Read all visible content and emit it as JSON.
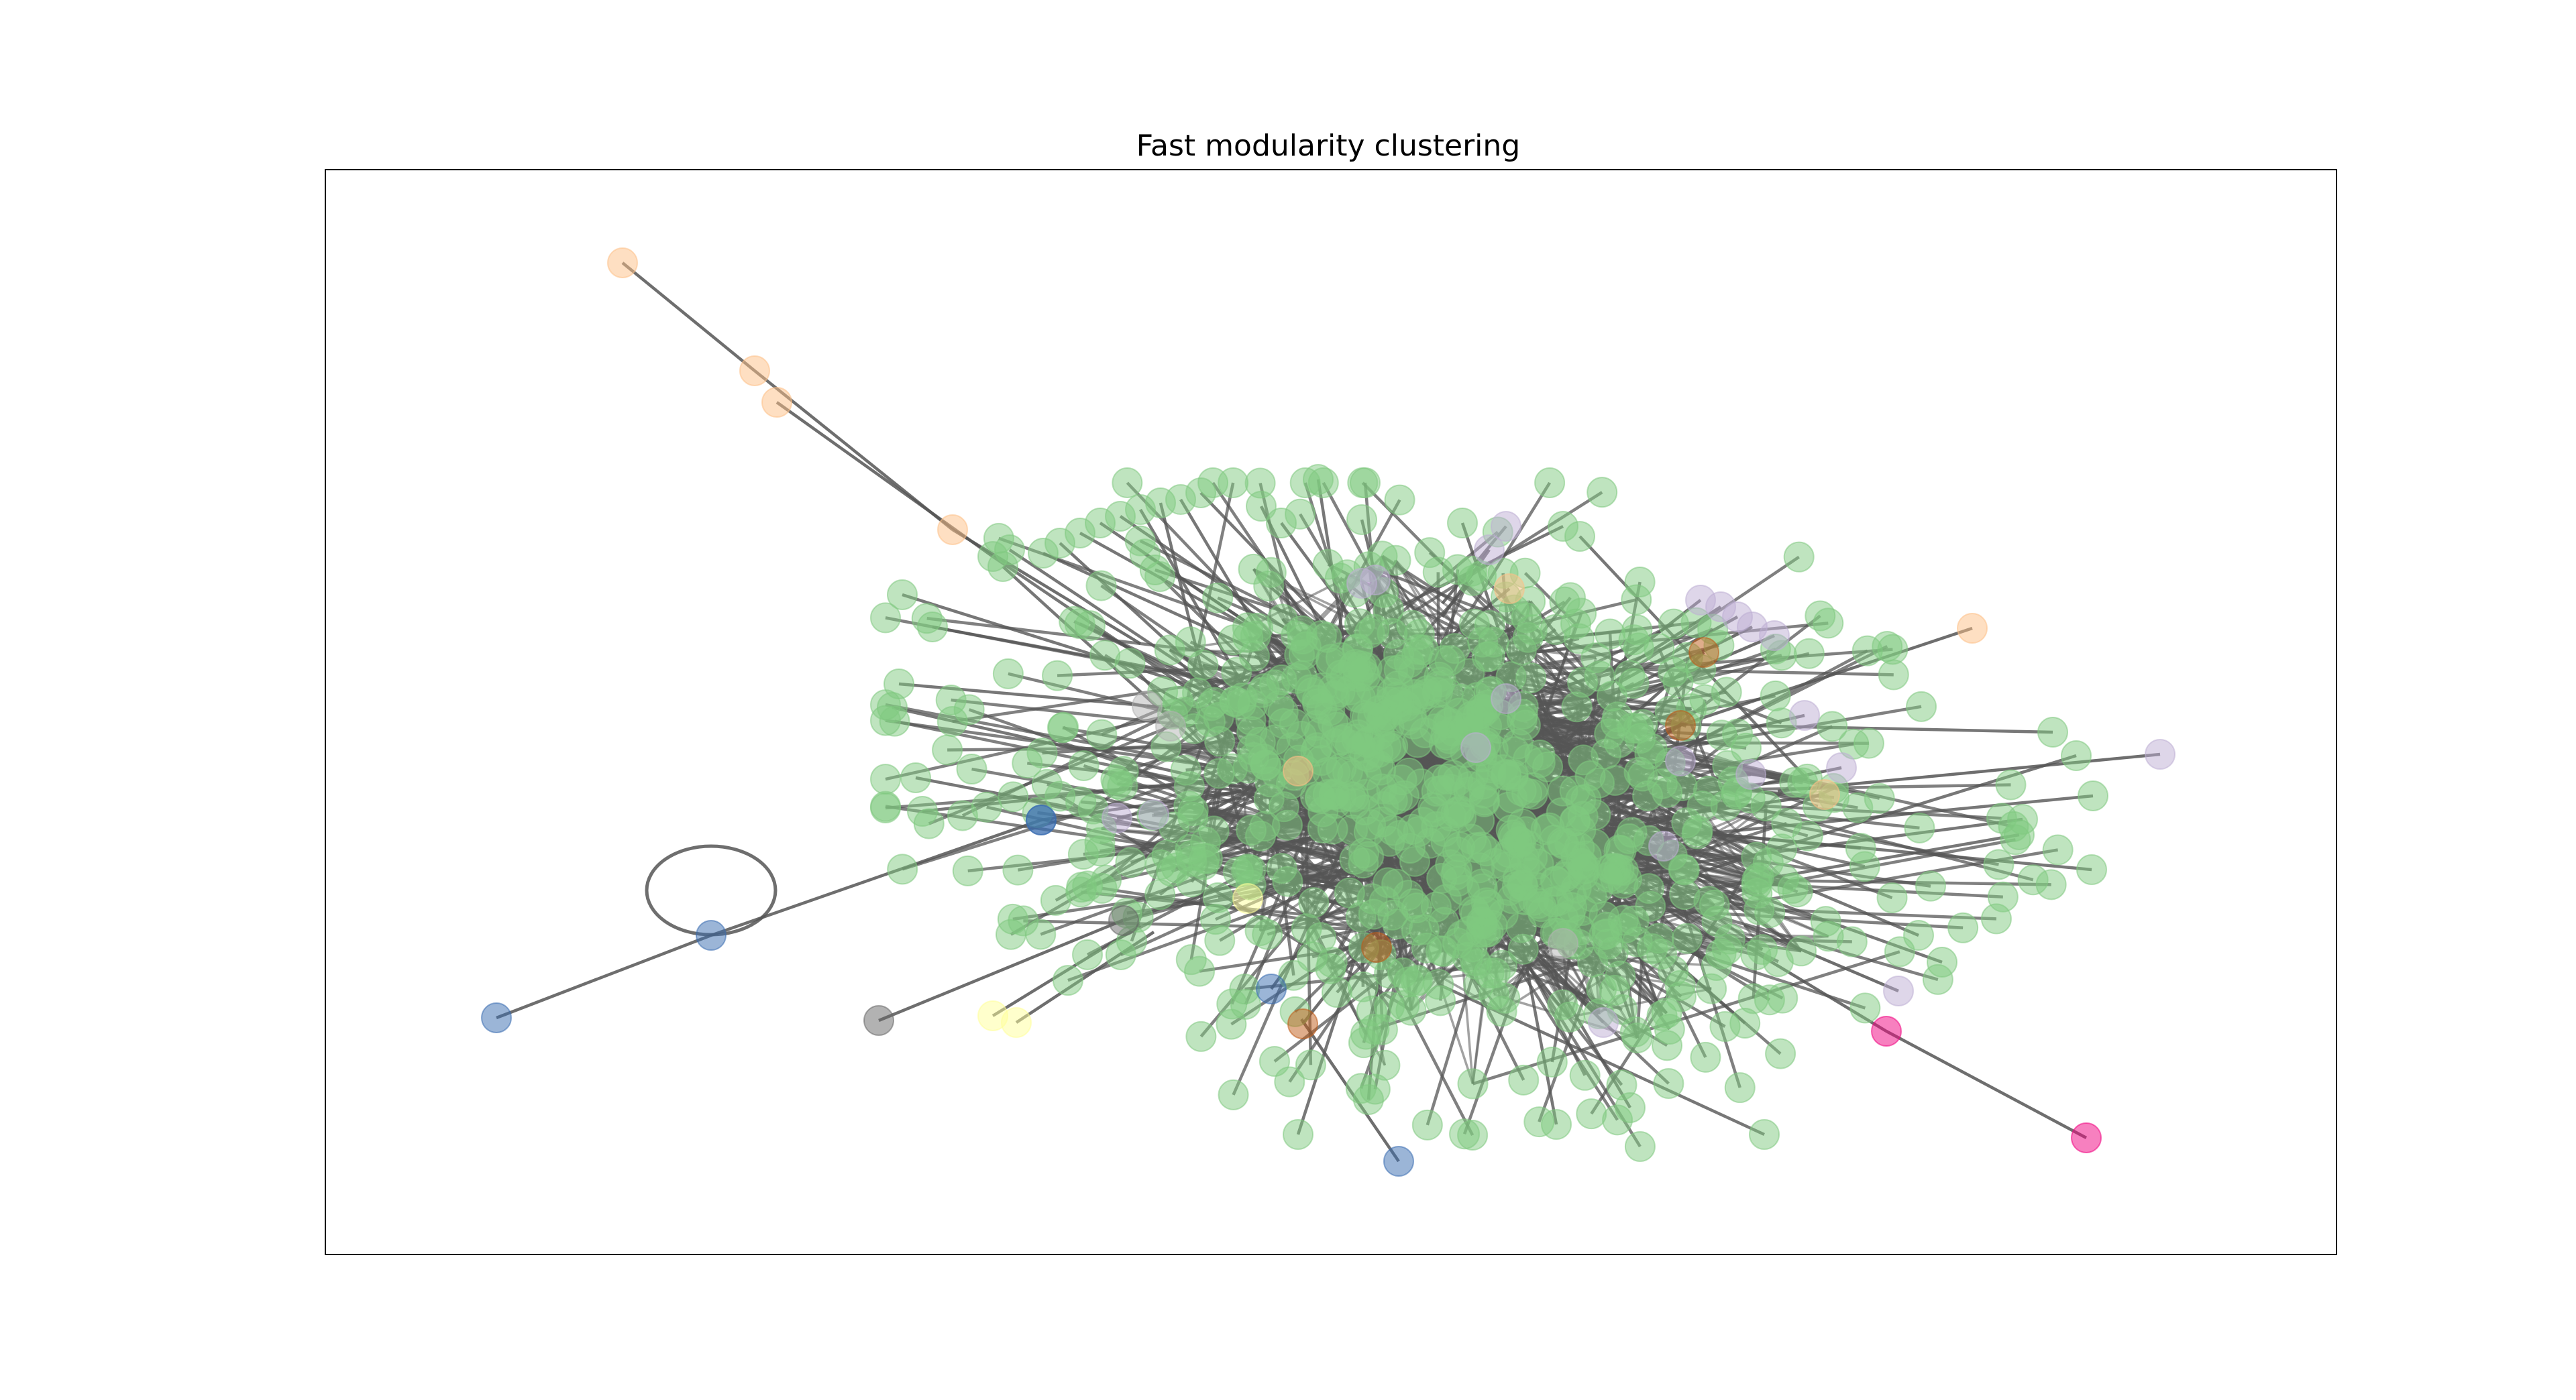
{
  "figure": {
    "title": "Fast modularity clustering"
  },
  "graph": {
    "node_opacity": 0.5,
    "edge_color": "#555555",
    "cluster_colors": {
      "main": "#7fc97f",
      "purple": "#beaed4",
      "peach": "#fdc086",
      "yellow": "#ffff99",
      "blue": "#386cb0",
      "magenta": "#f0027f",
      "brown": "#bf5b17",
      "gray": "#666666"
    },
    "has_self_loop": true
  }
}
